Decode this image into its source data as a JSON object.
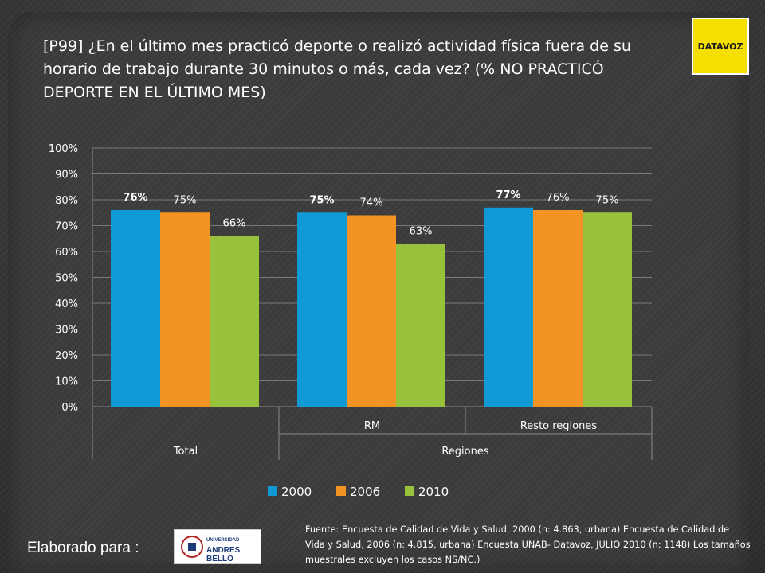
{
  "title": "[P99]  ¿En el último mes practicó deporte o realizó actividad física fuera de su horario de trabajo durante 30 minutos o más, cada vez? (% NO PRACTICÓ DEPORTE EN EL ÚLTIMO MES)",
  "logo": {
    "text": "DATAVOZ",
    "color": "#f4df00"
  },
  "footer": {
    "label": "Elaborado para :",
    "university_line1": "UNIVERSIDAD",
    "university_line2": "ANDRES BELLO",
    "source": "Fuente: Encuesta de Calidad de Vida y Salud, 2000 (n: 4.863, urbana) Encuesta de Calidad de Vida y Salud, 2006 (n: 4.815, urbana)  Encuesta UNAB- Datavoz, JULIO 2010 (n: 1148) Los tamaños muestrales excluyen los casos NS/NC.)"
  },
  "chart_data": {
    "type": "bar",
    "categories": [
      {
        "label": "",
        "group": "Total"
      },
      {
        "label": "RM",
        "group": "Regiones"
      },
      {
        "label": "Resto regiones",
        "group": "Regiones"
      }
    ],
    "groups": [
      "Total",
      "Regiones"
    ],
    "series": [
      {
        "name": "2000",
        "color": "#0f9ad6",
        "values": [
          76,
          75,
          77
        ],
        "labels": [
          "76%",
          "75%",
          "77%"
        ],
        "bold_labels": true
      },
      {
        "name": "2006",
        "color": "#f39323",
        "values": [
          75,
          74,
          76
        ],
        "labels": [
          "75%",
          "74%",
          "76%"
        ],
        "bold_labels": false
      },
      {
        "name": "2010",
        "color": "#99c23c",
        "values": [
          66,
          63,
          75
        ],
        "labels": [
          "66%",
          "63%",
          "75%"
        ],
        "bold_labels": false
      }
    ],
    "yticks": [
      "0%",
      "10%",
      "20%",
      "30%",
      "40%",
      "50%",
      "60%",
      "70%",
      "80%",
      "90%",
      "100%"
    ],
    "ylim": [
      0,
      100
    ],
    "grid": true,
    "legend_position": "bottom"
  }
}
